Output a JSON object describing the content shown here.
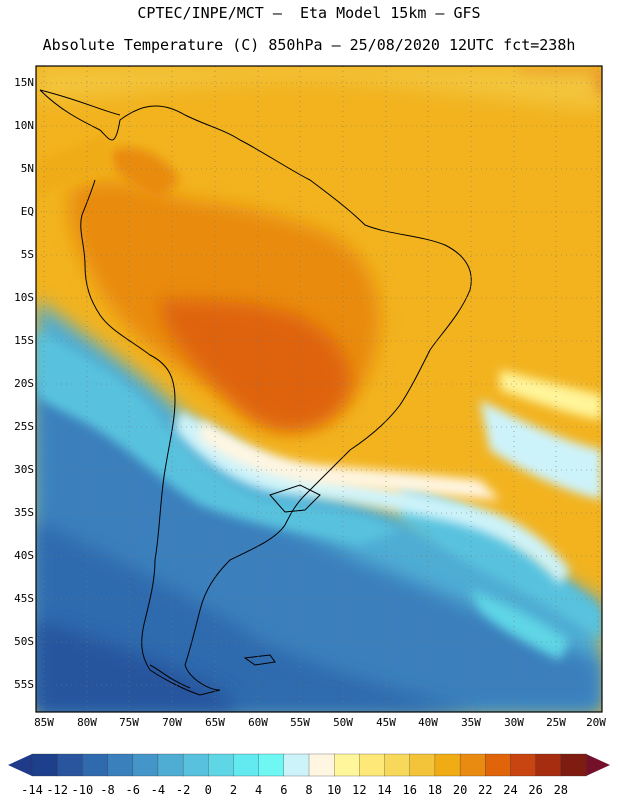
{
  "header": {
    "line1": "CPTEC/INPE/MCT –  Eta Model 15km – GFS",
    "line2": "Absolute Temperature (C) 850hPa – 25/08/2020 12UTC fct=238h"
  },
  "map": {
    "lat_labels": [
      "15N",
      "10N",
      "5N",
      "EQ",
      "5S",
      "10S",
      "15S",
      "20S",
      "25S",
      "30S",
      "35S",
      "40S",
      "45S",
      "50S",
      "55S"
    ],
    "lon_labels": [
      "85W",
      "80W",
      "75W",
      "70W",
      "65W",
      "60W",
      "55W",
      "50W",
      "45W",
      "40W",
      "35W",
      "30W",
      "25W",
      "20W"
    ]
  },
  "colorbar": {
    "labels": [
      "-14",
      "-12",
      "-10",
      "-8",
      "-6",
      "-4",
      "-2",
      "0",
      "2",
      "4",
      "6",
      "8",
      "10",
      "12",
      "14",
      "16",
      "18",
      "20",
      "22",
      "24",
      "26",
      "28"
    ],
    "colors": [
      "#1d3f8c",
      "#28559e",
      "#2f6aae",
      "#3a80bd",
      "#4596c8",
      "#4fadd4",
      "#58c2de",
      "#5fd6e6",
      "#62eaf0",
      "#6ff7f4",
      "#cdf3fa",
      "#fff6e2",
      "#fff59a",
      "#fde878",
      "#f8d85a",
      "#f3c43a",
      "#f0ac15",
      "#e98b10",
      "#df640a",
      "#c84410",
      "#a62d10",
      "#7f1c12"
    ],
    "under_color": "#203a8a",
    "over_color": "#74102a"
  }
}
